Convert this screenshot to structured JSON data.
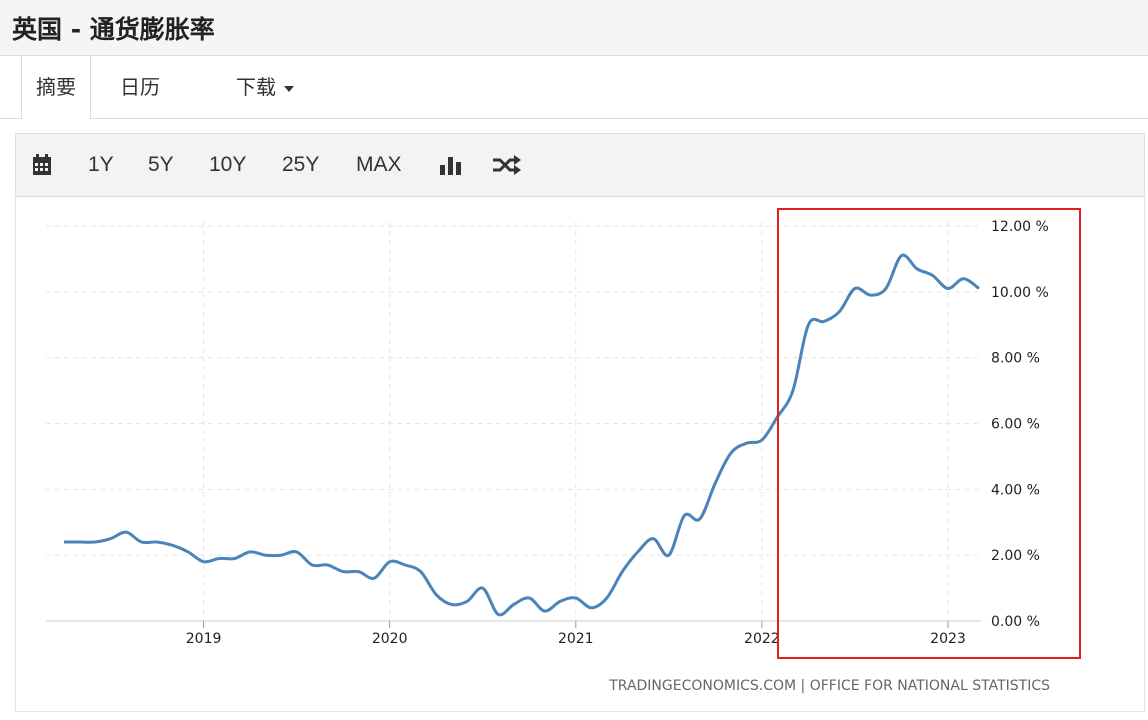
{
  "header": {
    "title": "英国 - 通货膨胀率"
  },
  "tabs": {
    "summary": "摘要",
    "calendar": "日历",
    "download": "下载"
  },
  "toolbar": {
    "icons": [
      "calendar-icon",
      "bar-chart-icon",
      "shuffle-icon"
    ],
    "ranges": [
      "1Y",
      "5Y",
      "10Y",
      "25Y",
      "MAX"
    ]
  },
  "colors": {
    "line": "#4a84b9",
    "highlight_box": "#e02020",
    "grid": "#e6e6e6"
  },
  "chart_data": {
    "type": "line",
    "title": "",
    "xlabel": "",
    "ylabel": "",
    "x_ticks": [
      "2019",
      "2020",
      "2021",
      "2022",
      "2023"
    ],
    "y_ticks": [
      "0.00 %",
      "2.00 %",
      "4.00 %",
      "6.00 %",
      "8.00 %",
      "10.00 %",
      "12.00 %"
    ],
    "ylim": [
      0,
      12
    ],
    "xlim": [
      "2018-04",
      "2023-03"
    ],
    "grid": true,
    "source": "TRADINGECONOMICS.COM | OFFICE FOR NATIONAL STATISTICS",
    "series": [
      {
        "x": [
          "2018-04",
          "2018-05",
          "2018-06",
          "2018-07",
          "2018-08",
          "2018-09",
          "2018-10",
          "2018-11",
          "2018-12",
          "2019-01",
          "2019-02",
          "2019-03",
          "2019-04",
          "2019-05",
          "2019-06",
          "2019-07",
          "2019-08",
          "2019-09",
          "2019-10",
          "2019-11",
          "2019-12",
          "2020-01",
          "2020-02",
          "2020-03",
          "2020-04",
          "2020-05",
          "2020-06",
          "2020-07",
          "2020-08",
          "2020-09",
          "2020-10",
          "2020-11",
          "2020-12",
          "2021-01",
          "2021-02",
          "2021-03",
          "2021-04",
          "2021-05",
          "2021-06",
          "2021-07",
          "2021-08",
          "2021-09",
          "2021-10",
          "2021-11",
          "2021-12",
          "2022-01",
          "2022-02",
          "2022-03",
          "2022-04",
          "2022-05",
          "2022-06",
          "2022-07",
          "2022-08",
          "2022-09",
          "2022-10",
          "2022-11",
          "2022-12",
          "2023-01",
          "2023-02",
          "2023-03"
        ],
        "values": [
          2.4,
          2.4,
          2.4,
          2.5,
          2.7,
          2.4,
          2.4,
          2.3,
          2.1,
          1.8,
          1.9,
          1.9,
          2.1,
          2.0,
          2.0,
          2.1,
          1.7,
          1.7,
          1.5,
          1.5,
          1.3,
          1.8,
          1.7,
          1.5,
          0.8,
          0.5,
          0.6,
          1.0,
          0.2,
          0.5,
          0.7,
          0.3,
          0.6,
          0.7,
          0.4,
          0.7,
          1.5,
          2.1,
          2.5,
          2.0,
          3.2,
          3.1,
          4.2,
          5.1,
          5.4,
          5.5,
          6.2,
          7.0,
          9.0,
          9.1,
          9.4,
          10.1,
          9.9,
          10.1,
          11.1,
          10.7,
          10.5,
          10.1,
          10.4,
          10.1
        ]
      }
    ]
  }
}
